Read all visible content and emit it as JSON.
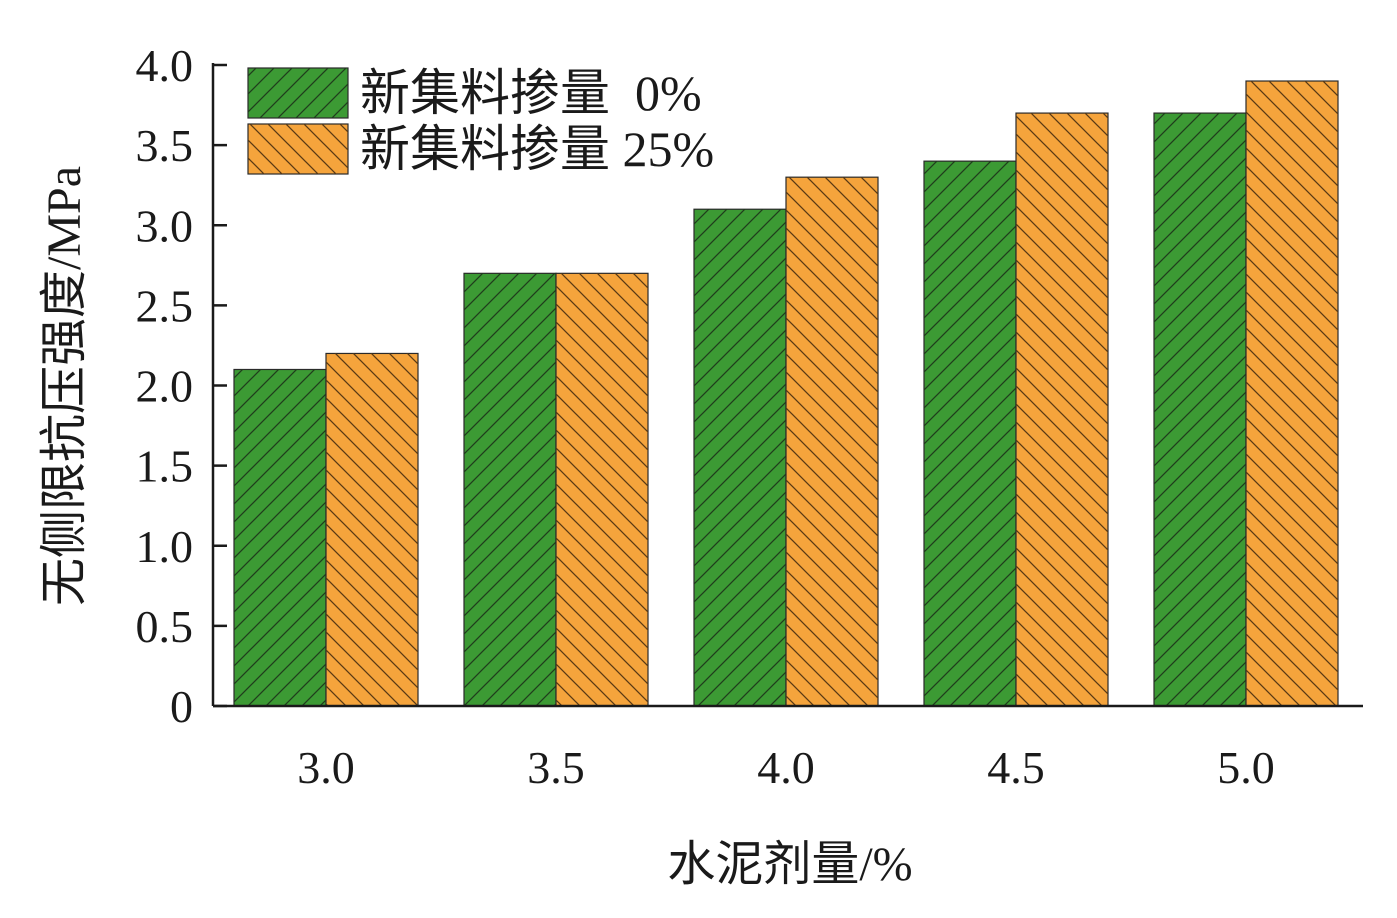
{
  "chart_data": {
    "type": "bar",
    "categories": [
      "3.0",
      "3.5",
      "4.0",
      "4.5",
      "5.0"
    ],
    "series": [
      {
        "name": "新集料掺量  0%",
        "values": [
          2.1,
          2.7,
          3.1,
          3.4,
          3.7
        ],
        "color": "#3c9a34",
        "hatch": "forward"
      },
      {
        "name": "新集料掺量 25%",
        "values": [
          2.2,
          2.7,
          3.3,
          3.7,
          3.9
        ],
        "color": "#f5a43c",
        "hatch": "backward"
      }
    ],
    "xlabel": "水泥剂量/%",
    "ylabel": "无侧限抗压强度/MPa",
    "ylim": [
      0,
      4.0
    ],
    "yticks": [
      "0",
      "0.5",
      "1.0",
      "1.5",
      "2.0",
      "2.5",
      "3.0",
      "3.5",
      "4.0"
    ],
    "grid": false,
    "legend_position": "top-left"
  }
}
